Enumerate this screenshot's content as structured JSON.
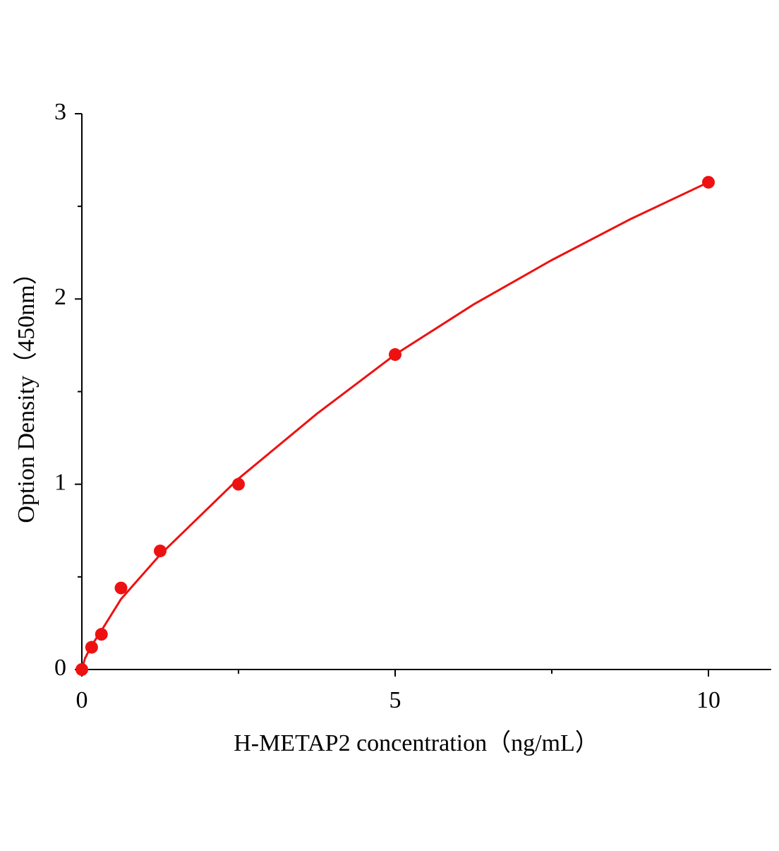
{
  "chart_data": {
    "type": "scatter",
    "x_label": "H-METAP2 concentration（ng/mL）",
    "y_label": "Option Density（450nm）",
    "xlim": [
      0,
      11
    ],
    "ylim": [
      0,
      3
    ],
    "xticks": [
      0,
      5,
      10
    ],
    "yticks": [
      0,
      1,
      2,
      3
    ],
    "xminorticks": [
      2.5,
      7.5
    ],
    "yminorticks": [
      0.5,
      1.5,
      2.5
    ],
    "series": [
      {
        "mode": "markers",
        "color": "#ee1111",
        "x": [
          0,
          0.156,
          0.3125,
          0.625,
          1.25,
          2.5,
          5,
          10
        ],
        "values": [
          0,
          0.12,
          0.19,
          0.44,
          0.64,
          1.0,
          1.7,
          2.63
        ]
      },
      {
        "mode": "line",
        "color": "#ee1111",
        "x": [
          0,
          0.05,
          0.156,
          0.3125,
          0.625,
          1.25,
          2.5,
          3.75,
          5,
          6.25,
          7.5,
          8.75,
          10
        ],
        "values": [
          0,
          0.06,
          0.13,
          0.21,
          0.38,
          0.62,
          1.03,
          1.38,
          1.7,
          1.97,
          2.21,
          2.43,
          2.63
        ]
      }
    ]
  }
}
